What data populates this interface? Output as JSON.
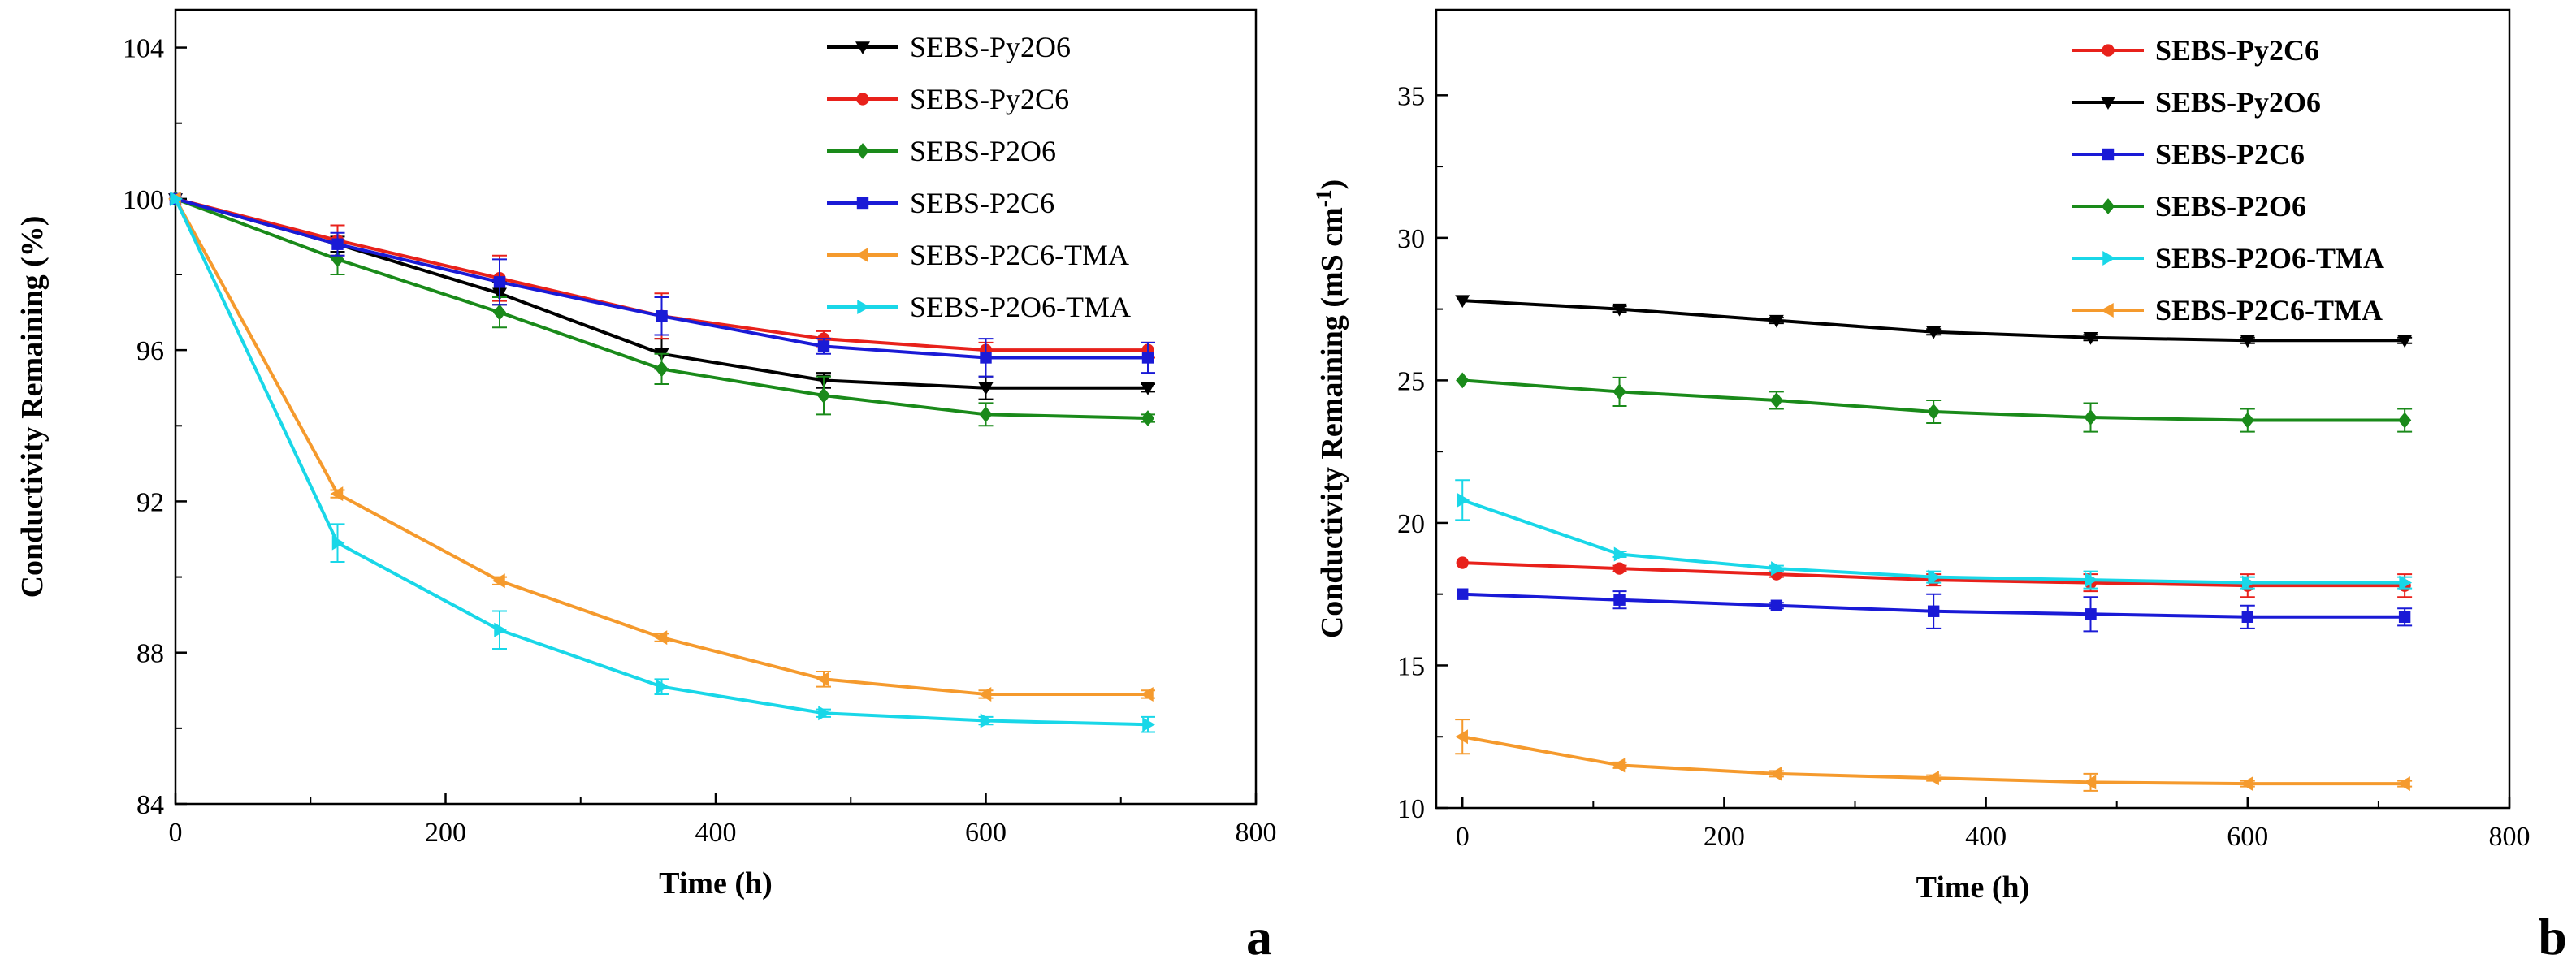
{
  "chart_data": [
    {
      "type": "line",
      "panel_label": "a",
      "xlabel": "Time (h)",
      "ylabel": "Conductivity Remaining (%)",
      "xlim": [
        0,
        800
      ],
      "ylim": [
        84,
        105
      ],
      "xticks": [
        0,
        200,
        400,
        600,
        800
      ],
      "yticks": [
        84,
        88,
        92,
        96,
        100,
        104
      ],
      "grid": false,
      "legend_position": "top-right",
      "x": [
        0,
        120,
        240,
        360,
        480,
        600,
        720
      ],
      "series": [
        {
          "name": "SEBS-Py2O6",
          "color": "#000000",
          "marker": "triangle-down",
          "values": [
            100,
            98.8,
            97.5,
            95.9,
            95.2,
            95.0,
            95.0
          ],
          "errors": [
            0,
            0.2,
            0.3,
            0.4,
            0.2,
            0.3,
            0.1
          ]
        },
        {
          "name": "SEBS-Py2C6",
          "color": "#e8211b",
          "marker": "circle",
          "values": [
            100,
            98.9,
            97.9,
            96.9,
            96.3,
            96.0,
            96.0
          ],
          "errors": [
            0,
            0.4,
            0.6,
            0.6,
            0.2,
            0.2,
            0.2
          ]
        },
        {
          "name": "SEBS-P2O6",
          "color": "#1a8a1a",
          "marker": "diamond",
          "values": [
            100,
            98.4,
            97.0,
            95.5,
            94.8,
            94.3,
            94.2
          ],
          "errors": [
            0,
            0.4,
            0.4,
            0.4,
            0.5,
            0.3,
            0.1
          ]
        },
        {
          "name": "SEBS-P2C6",
          "color": "#1a1ad6",
          "marker": "square",
          "values": [
            100,
            98.8,
            97.8,
            96.9,
            96.1,
            95.8,
            95.8
          ],
          "errors": [
            0,
            0.3,
            0.6,
            0.5,
            0.2,
            0.5,
            0.4
          ]
        },
        {
          "name": "SEBS-P2C6-TMA",
          "color": "#f59a2d",
          "marker": "triangle-left",
          "values": [
            100,
            92.2,
            89.9,
            88.4,
            87.3,
            86.9,
            86.9
          ],
          "errors": [
            0,
            0.1,
            0.1,
            0.1,
            0.2,
            0.1,
            0.1
          ]
        },
        {
          "name": "SEBS-P2O6-TMA",
          "color": "#19d7e8",
          "marker": "triangle-right",
          "values": [
            100,
            90.9,
            88.6,
            87.1,
            86.4,
            86.2,
            86.1
          ],
          "errors": [
            0,
            0.5,
            0.5,
            0.2,
            0.1,
            0.1,
            0.2
          ]
        }
      ]
    },
    {
      "type": "line",
      "panel_label": "b",
      "xlabel": "Time (h)",
      "ylabel": "Conductivity Remaining (mS cm",
      "ylabel_sup": "-1",
      "ylabel_end": ")",
      "xlim": [
        -20,
        800
      ],
      "ylim": [
        10,
        38
      ],
      "xticks": [
        0,
        200,
        400,
        600,
        800
      ],
      "yticks": [
        10,
        15,
        20,
        25,
        30,
        35
      ],
      "grid": false,
      "legend_position": "top-right",
      "x": [
        0,
        120,
        240,
        360,
        480,
        600,
        720
      ],
      "series": [
        {
          "name": "SEBS-Py2C6",
          "color": "#e8211b",
          "marker": "circle",
          "values": [
            18.6,
            18.4,
            18.2,
            18.0,
            17.9,
            17.8,
            17.8
          ],
          "errors": [
            0,
            0.1,
            0.1,
            0.2,
            0.3,
            0.4,
            0.4
          ]
        },
        {
          "name": "SEBS-Py2O6",
          "color": "#000000",
          "marker": "triangle-down",
          "values": [
            27.8,
            27.5,
            27.1,
            26.7,
            26.5,
            26.4,
            26.4
          ],
          "errors": [
            0,
            0.1,
            0.1,
            0.1,
            0.1,
            0.1,
            0.1
          ]
        },
        {
          "name": "SEBS-P2C6",
          "color": "#1a1ad6",
          "marker": "square",
          "values": [
            17.5,
            17.3,
            17.1,
            16.9,
            16.8,
            16.7,
            16.7
          ],
          "errors": [
            0,
            0.3,
            0.1,
            0.6,
            0.6,
            0.4,
            0.3
          ]
        },
        {
          "name": "SEBS-P2O6",
          "color": "#1a8a1a",
          "marker": "diamond",
          "values": [
            25.0,
            24.6,
            24.3,
            23.9,
            23.7,
            23.6,
            23.6
          ],
          "errors": [
            0,
            0.5,
            0.3,
            0.4,
            0.5,
            0.4,
            0.4
          ]
        },
        {
          "name": "SEBS-P2O6-TMA",
          "color": "#19d7e8",
          "marker": "triangle-right",
          "values": [
            20.8,
            18.9,
            18.4,
            18.1,
            18.0,
            17.9,
            17.9
          ],
          "errors": [
            0.7,
            0.1,
            0.1,
            0.2,
            0.3,
            0.2,
            0.2
          ]
        },
        {
          "name": "SEBS-P2C6-TMA",
          "color": "#f59a2d",
          "marker": "triangle-left",
          "values": [
            12.5,
            11.5,
            11.2,
            11.05,
            10.9,
            10.85,
            10.85
          ],
          "errors": [
            0.6,
            0.1,
            0.1,
            0.1,
            0.3,
            0.1,
            0.1
          ]
        }
      ]
    }
  ]
}
